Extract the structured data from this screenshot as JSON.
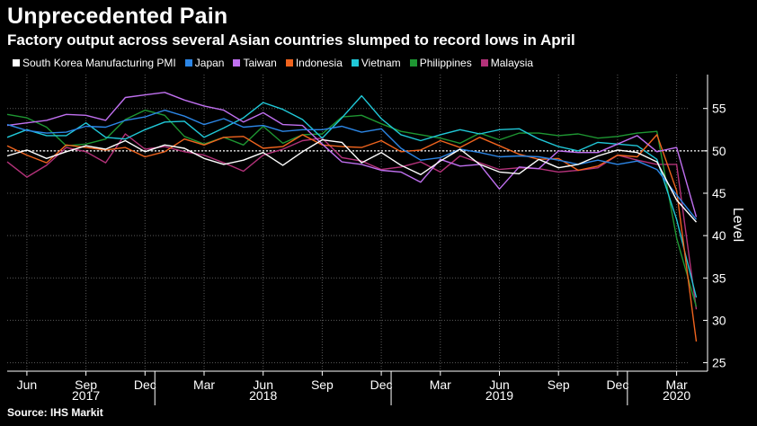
{
  "header": {
    "title": "Unprecedented Pain",
    "subtitle": "Factory output across several Asian countries slumped to record lows in April"
  },
  "footer": {
    "source": "Source: IHS Markit"
  },
  "chart_data": {
    "type": "line",
    "ylabel": "Level",
    "ylim": [
      24,
      59
    ],
    "yticks": [
      25,
      30,
      35,
      40,
      45,
      50,
      55
    ],
    "reference_line": 50,
    "x_month_ticks": [
      {
        "label": "Jun",
        "index": 1
      },
      {
        "label": "Sep",
        "index": 4
      },
      {
        "label": "Dec",
        "index": 7
      },
      {
        "label": "Mar",
        "index": 10
      },
      {
        "label": "Jun",
        "index": 13
      },
      {
        "label": "Sep",
        "index": 16
      },
      {
        "label": "Dec",
        "index": 19
      },
      {
        "label": "Mar",
        "index": 22
      },
      {
        "label": "Jun",
        "index": 25
      },
      {
        "label": "Sep",
        "index": 28
      },
      {
        "label": "Dec",
        "index": 31
      },
      {
        "label": "Mar",
        "index": 34
      }
    ],
    "x_year_labels": [
      {
        "label": "2017",
        "center": 4
      },
      {
        "label": "2018",
        "center": 13
      },
      {
        "label": "2019",
        "center": 25
      },
      {
        "label": "2020",
        "center": 34
      }
    ],
    "x_year_dividers": [
      7.5,
      19.5,
      31.5
    ],
    "x_months": [
      "2017-05",
      "2017-06",
      "2017-07",
      "2017-08",
      "2017-09",
      "2017-10",
      "2017-11",
      "2017-12",
      "2018-01",
      "2018-02",
      "2018-03",
      "2018-04",
      "2018-05",
      "2018-06",
      "2018-07",
      "2018-08",
      "2018-09",
      "2018-10",
      "2018-11",
      "2018-12",
      "2019-01",
      "2019-02",
      "2019-03",
      "2019-04",
      "2019-05",
      "2019-06",
      "2019-07",
      "2019-08",
      "2019-09",
      "2019-10",
      "2019-11",
      "2019-12",
      "2020-01",
      "2020-02",
      "2020-03",
      "2020-04"
    ],
    "series": [
      {
        "name": "South Korea Manufacturing PMI",
        "color": "#ffffff",
        "values": [
          49.4,
          50.1,
          49.1,
          49.9,
          50.6,
          50.2,
          51.2,
          49.9,
          50.7,
          50.3,
          49.1,
          48.4,
          48.9,
          49.8,
          48.3,
          49.9,
          51.3,
          51.0,
          48.6,
          49.8,
          48.3,
          47.2,
          48.8,
          50.2,
          48.4,
          47.5,
          47.3,
          49.0,
          48.0,
          48.4,
          49.4,
          50.1,
          49.8,
          48.7,
          44.2,
          41.6
        ]
      },
      {
        "name": "Japan",
        "color": "#2c86e6",
        "values": [
          53.1,
          52.4,
          52.1,
          52.2,
          52.9,
          52.8,
          53.6,
          54.0,
          54.8,
          54.1,
          53.1,
          53.8,
          52.8,
          53.0,
          52.3,
          52.5,
          52.5,
          52.9,
          52.2,
          52.6,
          50.3,
          48.9,
          49.2,
          50.2,
          49.8,
          49.3,
          49.4,
          49.3,
          48.9,
          48.4,
          48.9,
          48.4,
          48.8,
          47.8,
          44.8,
          41.9
        ]
      },
      {
        "name": "Taiwan",
        "color": "#c070f0",
        "values": [
          53.0,
          53.3,
          53.6,
          54.3,
          54.2,
          53.6,
          56.3,
          56.6,
          56.9,
          56.0,
          55.3,
          54.8,
          53.4,
          54.5,
          53.1,
          53.0,
          50.8,
          48.7,
          48.4,
          47.7,
          47.5,
          46.3,
          49.0,
          48.2,
          48.4,
          45.5,
          48.1,
          47.9,
          50.0,
          49.8,
          49.8,
          50.8,
          51.8,
          49.9,
          50.4,
          42.2
        ]
      },
      {
        "name": "Indonesia",
        "color": "#f0641e",
        "values": [
          50.6,
          49.5,
          48.6,
          50.7,
          50.4,
          50.1,
          50.4,
          49.3,
          49.9,
          51.4,
          50.7,
          51.6,
          51.7,
          50.3,
          50.5,
          51.9,
          50.7,
          50.5,
          50.4,
          51.2,
          49.9,
          50.1,
          51.2,
          50.4,
          51.6,
          50.6,
          49.6,
          49.0,
          49.1,
          47.7,
          48.2,
          49.5,
          49.3,
          51.9,
          45.3,
          27.5
        ]
      },
      {
        "name": "Vietnam",
        "color": "#20c8d8",
        "values": [
          51.6,
          52.5,
          51.8,
          51.8,
          53.3,
          51.6,
          51.4,
          52.5,
          53.4,
          53.5,
          51.6,
          52.7,
          53.9,
          55.7,
          54.9,
          53.7,
          51.5,
          53.9,
          56.5,
          53.8,
          51.9,
          51.2,
          51.9,
          52.5,
          52.0,
          52.5,
          52.6,
          51.4,
          50.5,
          50.0,
          51.0,
          50.8,
          50.6,
          49.0,
          41.9,
          32.7
        ]
      },
      {
        "name": "Philippines",
        "color": "#1e9632",
        "values": [
          54.3,
          53.9,
          52.8,
          50.6,
          50.8,
          51.4,
          53.7,
          54.8,
          54.2,
          51.7,
          50.8,
          51.6,
          50.7,
          52.9,
          50.9,
          51.9,
          52.0,
          54.0,
          54.2,
          53.2,
          52.3,
          51.9,
          51.5,
          50.9,
          52.1,
          51.3,
          52.1,
          52.1,
          51.8,
          52.0,
          51.5,
          51.7,
          52.1,
          52.3,
          39.7,
          31.6
        ]
      },
      {
        "name": "Malaysia",
        "color": "#b4327a",
        "values": [
          48.7,
          46.9,
          48.3,
          50.4,
          49.9,
          48.6,
          52.0,
          50.2,
          50.5,
          49.9,
          49.5,
          48.6,
          47.6,
          49.5,
          50.2,
          51.2,
          51.5,
          49.2,
          48.8,
          47.8,
          48.1,
          48.7,
          47.5,
          49.4,
          48.6,
          47.8,
          48.0,
          47.9,
          47.5,
          47.7,
          48.0,
          49.5,
          48.9,
          48.4,
          48.4,
          31.3
        ]
      }
    ]
  }
}
